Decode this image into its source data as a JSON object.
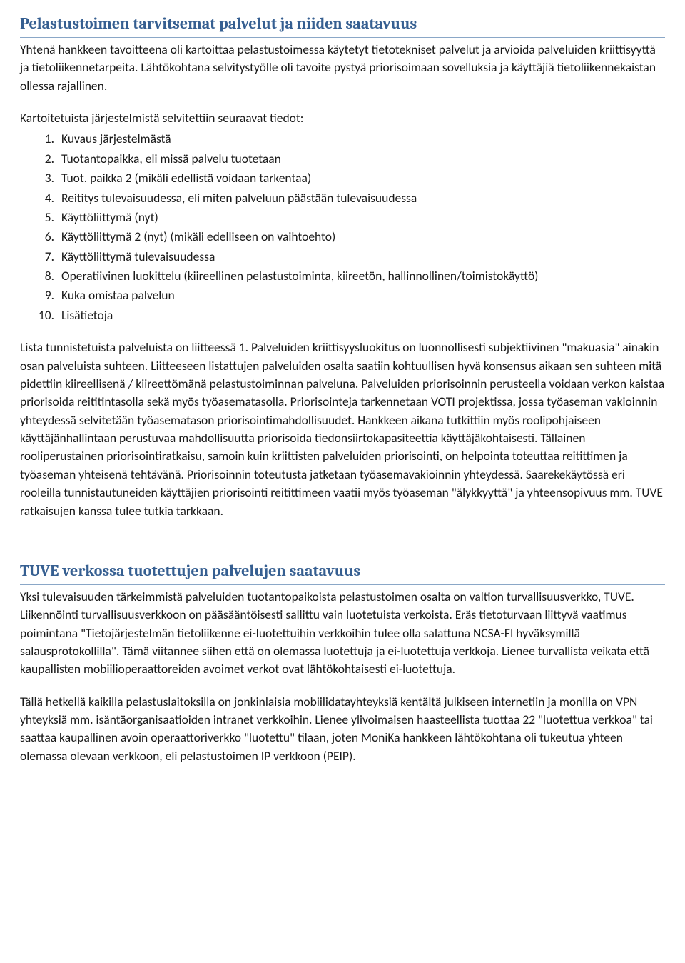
{
  "section1": {
    "heading": "Pelastustoimen tarvitsemat palvelut ja niiden saatavuus",
    "para1": "Yhtenä hankkeen tavoitteena oli kartoittaa pelastustoimessa käytetyt tietotekniset palvelut ja arvioida palveluiden kriittisyyttä ja tietoliikennetarpeita. Lähtökohtana selvitystyölle oli tavoite pystyä priorisoimaan sovelluksia ja käyttäjiä tietoliikennekaistan ollessa rajallinen.",
    "para2": "Kartoitetuista järjestelmistä selvitettiin seuraavat tiedot:",
    "list": [
      "Kuvaus järjestelmästä",
      "Tuotantopaikka, eli missä palvelu tuotetaan",
      "Tuot. paikka 2 (mikäli edellistä voidaan tarkentaa)",
      "Reititys tulevaisuudessa, eli miten palveluun päästään tulevaisuudessa",
      "Käyttöliittymä (nyt)",
      "Käyttöliittymä 2 (nyt) (mikäli edelliseen on vaihtoehto)",
      "Käyttöliittymä tulevaisuudessa",
      "Operatiivinen luokittelu (kiireellinen pelastustoiminta, kiireetön, hallinnollinen/toimistokäyttö)",
      "Kuka omistaa palvelun",
      "Lisätietoja"
    ],
    "para3": "Lista tunnistetuista palveluista on liitteessä 1. Palveluiden kriittisyysluokitus on luonnollisesti subjektiivinen \"makuasia\" ainakin osan palveluista suhteen. Liitteeseen listattujen palveluiden osalta saatiin kohtuullisen hyvä konsensus aikaan sen suhteen mitä pidettiin kiireellisenä / kiireettömänä pelastustoiminnan palveluna. Palveluiden priorisoinnin perusteella voidaan verkon kaistaa priorisoida reititintasolla sekä myös työasematasolla. Priorisointeja tarkennetaan VOTI projektissa, jossa työaseman vakioinnin yhteydessä selvitetään työasematason priorisointimahdollisuudet. Hankkeen aikana tutkittiin myös roolipohjaiseen käyttäjänhallintaan perustuvaa mahdollisuutta priorisoida tiedonsiirtokapasiteettia käyttäjäkohtaisesti. Tällainen rooliperustainen priorisointiratkaisu, samoin kuin kriittisten palveluiden priorisointi, on helpointa toteuttaa reitittimen ja työaseman yhteisenä tehtävänä. Priorisoinnin toteutusta jatketaan työasemavakioinnin yhteydessä. Saarekekäytössä eri rooleilla tunnistautuneiden käyttäjien priorisointi reitittimeen vaatii myös työaseman \"älykkyyttä\" ja yhteensopivuus mm. TUVE ratkaisujen kanssa tulee tutkia tarkkaan."
  },
  "section2": {
    "heading": "TUVE verkossa tuotettujen palvelujen saatavuus",
    "para1": "Yksi tulevaisuuden tärkeimmistä palveluiden tuotantopaikoista pelastustoimen osalta on valtion turvallisuusverkko, TUVE. Liikennöinti turvallisuusverkkoon on pääsääntöisesti sallittu vain luotetuista verkoista. Eräs tietoturvaan liittyvä vaatimus poimintana \"Tietojärjestelmän tietoliikenne ei-luotettuihin verkkoihin tulee olla salattuna NCSA-FI hyväksymillä salausprotokollilla\". Tämä viitannee siihen että on olemassa luotettuja ja ei-luotettuja verkkoja. Lienee turvallista veikata että kaupallisten mobiilioperaattoreiden avoimet verkot ovat lähtökohtaisesti ei-luotettuja.",
    "para2": "Tällä hetkellä kaikilla pelastuslaitoksilla on jonkinlaisia mobiilidatayhteyksiä kentältä julkiseen internetiin ja monilla on VPN yhteyksiä mm. isäntäorganisaatioiden intranet verkkoihin. Lienee ylivoimaisen haasteellista tuottaa 22 \"luotettua verkkoa\" tai saattaa kaupallinen avoin operaattoriverkko \"luotettu\" tilaan, joten MoniKa hankkeen lähtökohtana oli tukeutua yhteen olemassa olevaan verkkoon, eli pelastustoimen IP verkkoon (PEIP)."
  }
}
